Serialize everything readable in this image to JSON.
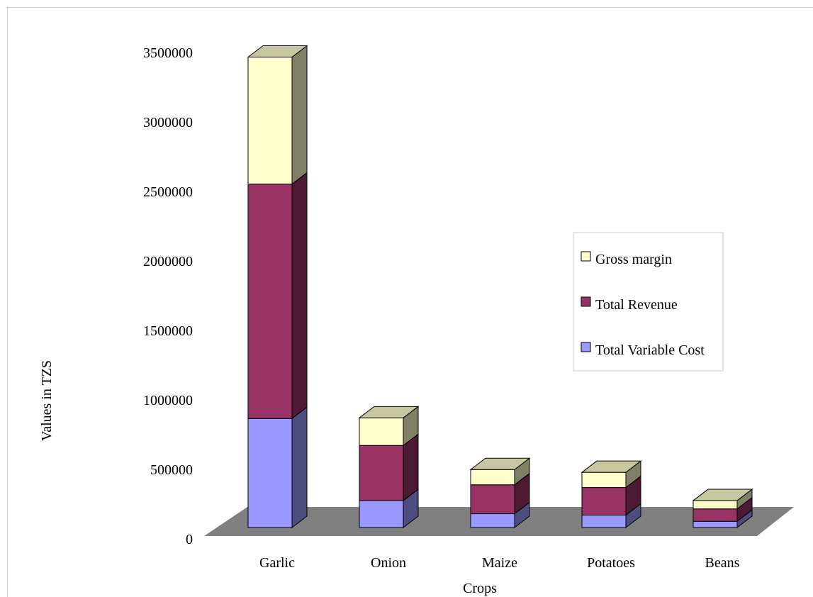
{
  "chart_data": {
    "type": "bar",
    "stacked": true,
    "three_d": true,
    "categories": [
      "Garlic",
      "Onion",
      "Maize",
      "Potatoes",
      "Beans"
    ],
    "series": [
      {
        "name": "Total Variable Cost",
        "values": [
          790000,
          195000,
          100000,
          90000,
          45000
        ],
        "color": "#9999ff"
      },
      {
        "name": "Total Revenue",
        "values": [
          1700000,
          400000,
          210000,
          200000,
          90000
        ],
        "color": "#993366"
      },
      {
        "name": "Gross margin",
        "values": [
          920000,
          200000,
          110000,
          110000,
          60000
        ],
        "color": "#ffffcc"
      }
    ],
    "xlabel": "Crops",
    "ylabel": "Values in TZS",
    "yticks": [
      "0",
      "500000",
      "1000000",
      "1500000",
      "2000000",
      "2500000",
      "3000000",
      "3500000"
    ],
    "ylim": [
      0,
      3500000
    ],
    "floor_color": "#808080",
    "legend_position": "right",
    "grid": false
  }
}
